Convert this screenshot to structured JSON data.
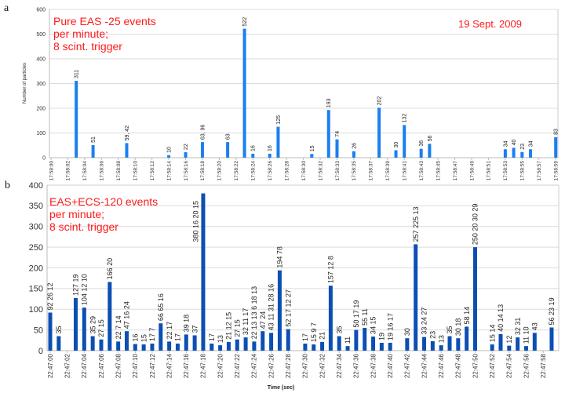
{
  "chart_data": [
    {
      "type": "bar",
      "panel_label": "a",
      "annotation": [
        "Pure EAS -25 events",
        "per minute;",
        "8 scint. trigger"
      ],
      "date": "19 Sept. 2009",
      "ylabel": "Number of particles",
      "xlabel": "",
      "ylim": [
        0,
        600
      ],
      "yticks": [
        "0",
        "100",
        "200",
        "300",
        "400",
        "500",
        "600"
      ],
      "xlim": [
        0,
        60
      ],
      "xticklabels": [
        "17:58:00",
        "17:58:02",
        "17:58:04",
        "17:58:06",
        "17:58:08",
        "17:58:10",
        "17:58:12",
        "17:58:14",
        "17:58:16",
        "17:58:18",
        "17:58:20",
        "17:58:22",
        "17:58:24",
        "17:58:26",
        "17:58:28",
        "17:58:30",
        "17:58:32",
        "17:58:33",
        "17:58:35",
        "17:58:37",
        "17:58:39",
        "17:58:41",
        "17:58:43",
        "17:58:45",
        "17:58:47",
        "17:58:49",
        "17:58:51",
        "17:58:53",
        "17:58:55",
        "17:58:57",
        "17:58:59"
      ],
      "grid": true,
      "bar_color": "#1a7ff0",
      "bars": [
        {
          "x": 3,
          "value": 311,
          "label": "311"
        },
        {
          "x": 5,
          "value": 51,
          "label": "51"
        },
        {
          "x": 9,
          "value": 59,
          "label": "59, 42"
        },
        {
          "x": 14,
          "value": 10,
          "label": "10"
        },
        {
          "x": 16,
          "value": 22,
          "label": "22"
        },
        {
          "x": 18,
          "value": 63,
          "label": "63, 96"
        },
        {
          "x": 21,
          "value": 63,
          "label": "63"
        },
        {
          "x": 23,
          "value": 522,
          "label": "522"
        },
        {
          "x": 24,
          "value": 16,
          "label": "16"
        },
        {
          "x": 26,
          "value": 16,
          "label": "16"
        },
        {
          "x": 27,
          "value": 125,
          "label": "125"
        },
        {
          "x": 31,
          "value": 15,
          "label": "15"
        },
        {
          "x": 33,
          "value": 193,
          "label": "193"
        },
        {
          "x": 34,
          "value": 74,
          "label": "74"
        },
        {
          "x": 36,
          "value": 26,
          "label": "26"
        },
        {
          "x": 39,
          "value": 202,
          "label": "202"
        },
        {
          "x": 41,
          "value": 30,
          "label": "30"
        },
        {
          "x": 42,
          "value": 132,
          "label": "132"
        },
        {
          "x": 44,
          "value": 36,
          "label": "36"
        },
        {
          "x": 45,
          "value": 56,
          "label": "56"
        },
        {
          "x": 54,
          "value": 34,
          "label": "34"
        },
        {
          "x": 55,
          "value": 40,
          "label": "40"
        },
        {
          "x": 56,
          "value": 23,
          "label": "23"
        },
        {
          "x": 57,
          "value": 34,
          "label": "34"
        },
        {
          "x": 60,
          "value": 83,
          "label": "83"
        }
      ]
    },
    {
      "type": "bar",
      "panel_label": "b",
      "annotation": [
        "EAS+ECS-120 events",
        "per minute;",
        "8 scint. trigger"
      ],
      "xlabel": "Time (sec)",
      "ylabel": "",
      "ylim": [
        0,
        400
      ],
      "yticks": [
        "0",
        "50",
        "100",
        "150",
        "200",
        "250",
        "300",
        "350",
        "400"
      ],
      "xlim": [
        0,
        59
      ],
      "xticklabels": [
        "22:47:00",
        "22:47:02",
        "22:47:04",
        "22:47:06",
        "22:47:08",
        "22:47:10",
        "22:47:12",
        "22:47:14",
        "22:47:16",
        "22:47:18",
        "22:47:20",
        "22:47:22",
        "22:47:24",
        "22:47:26",
        "22:47:28",
        "22:47:30",
        "22:47:32",
        "22:47:34",
        "22:47:36",
        "22:47:38",
        "22:47:40",
        "22:47:42",
        "22:47:44",
        "22:47:46",
        "22:47:48",
        "22:47:50",
        "22:47:52",
        "22:47:54",
        "22:47:56",
        "22:47:58"
      ],
      "grid": true,
      "bar_color": "#0b4fb3",
      "bars": [
        {
          "x": 0,
          "value": 92,
          "label": "92  26  12"
        },
        {
          "x": 1,
          "value": 35,
          "label": "35"
        },
        {
          "x": 3,
          "value": 127,
          "label": "127 19"
        },
        {
          "x": 4,
          "value": 104,
          "label": "104  12 10"
        },
        {
          "x": 5,
          "value": 35,
          "label": "35 29"
        },
        {
          "x": 6,
          "value": 27,
          "label": "27 15"
        },
        {
          "x": 7,
          "value": 166,
          "label": "166 20"
        },
        {
          "x": 8,
          "value": 22,
          "label": "22  7 14"
        },
        {
          "x": 9,
          "value": 47,
          "label": "47 16 24"
        },
        {
          "x": 10,
          "value": 16,
          "label": "16"
        },
        {
          "x": 11,
          "value": 15,
          "label": "15"
        },
        {
          "x": 12,
          "value": 17,
          "label": "17  7"
        },
        {
          "x": 13,
          "value": 66,
          "label": "66 65 16"
        },
        {
          "x": 14,
          "value": 22,
          "label": "22  17"
        },
        {
          "x": 15,
          "value": 17,
          "label": "17"
        },
        {
          "x": 16,
          "value": 39,
          "label": "39 18"
        },
        {
          "x": 17,
          "value": 37,
          "label": "37"
        },
        {
          "x": 18,
          "value": 380,
          "label": "380  16  20  15"
        },
        {
          "x": 19,
          "value": 17,
          "label": "17"
        },
        {
          "x": 20,
          "value": 13,
          "label": "13"
        },
        {
          "x": 21,
          "value": 21,
          "label": "21 12 15"
        },
        {
          "x": 22,
          "value": 27,
          "label": "27 15"
        },
        {
          "x": 23,
          "value": 32,
          "label": "32 11 17"
        },
        {
          "x": 24,
          "value": 22,
          "label": "22 13 13 6 18 13"
        },
        {
          "x": 25,
          "value": 47,
          "label": "47 24"
        },
        {
          "x": 26,
          "value": 43,
          "label": "43 11 31 28 16"
        },
        {
          "x": 27,
          "value": 194,
          "label": "194 78"
        },
        {
          "x": 28,
          "value": 52,
          "label": "52 17 12 27"
        },
        {
          "x": 30,
          "value": 17,
          "label": "17"
        },
        {
          "x": 31,
          "value": 15,
          "label": "15 9 7"
        },
        {
          "x": 32,
          "value": 21,
          "label": "21"
        },
        {
          "x": 33,
          "value": 157,
          "label": "157 12 8"
        },
        {
          "x": 34,
          "value": 35,
          "label": "35"
        },
        {
          "x": 35,
          "value": 11,
          "label": "11"
        },
        {
          "x": 36,
          "value": 50,
          "label": "50 17 19"
        },
        {
          "x": 37,
          "value": 55,
          "label": "55 11"
        },
        {
          "x": 38,
          "value": 34,
          "label": "34 15"
        },
        {
          "x": 39,
          "value": 19,
          "label": "19"
        },
        {
          "x": 40,
          "value": 19,
          "label": "19 16 17"
        },
        {
          "x": 42,
          "value": 30,
          "label": "30"
        },
        {
          "x": 43,
          "value": 257,
          "label": "257 225 13"
        },
        {
          "x": 44,
          "value": 33,
          "label": "33 24 27"
        },
        {
          "x": 45,
          "value": 23,
          "label": "23"
        },
        {
          "x": 46,
          "value": 13,
          "label": "13"
        },
        {
          "x": 47,
          "value": 35,
          "label": "35"
        },
        {
          "x": 48,
          "value": 30,
          "label": "30 18"
        },
        {
          "x": 49,
          "value": 58,
          "label": "58 14"
        },
        {
          "x": 50,
          "value": 250,
          "label": "250 20 30 29"
        },
        {
          "x": 52,
          "value": 15,
          "label": "15 14"
        },
        {
          "x": 53,
          "value": 40,
          "label": "40 14 13"
        },
        {
          "x": 54,
          "value": 12,
          "label": "12"
        },
        {
          "x": 55,
          "value": 32,
          "label": "32 31"
        },
        {
          "x": 56,
          "value": 11,
          "label": "11 10"
        },
        {
          "x": 57,
          "value": 43,
          "label": "43"
        },
        {
          "x": 59,
          "value": 56,
          "label": "56 23 19"
        }
      ]
    }
  ]
}
